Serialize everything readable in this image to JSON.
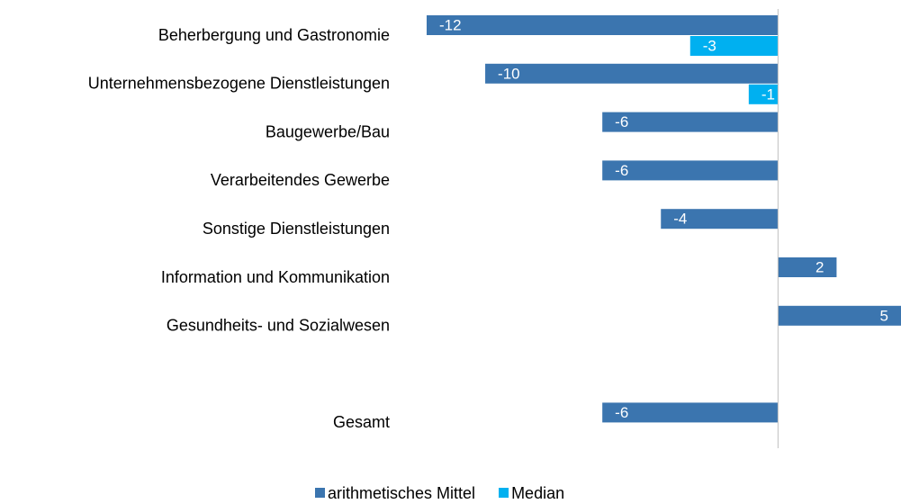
{
  "chart_data": {
    "type": "bar",
    "orientation": "horizontal",
    "categories": [
      "Beherbergung und Gastronomie",
      "Unternehmensbezogene Dienstleistungen",
      "Baugewerbe/Bau",
      "Verarbeitendes Gewerbe",
      "Sonstige Dienstleistungen",
      "Information und Kommunikation",
      "Gesundheits- und Sozialwesen",
      null,
      "Gesamt"
    ],
    "series": [
      {
        "name": "arithmetisches Mittel",
        "color": "#3b75af",
        "values": [
          -12,
          -10,
          -6,
          -6,
          -4,
          2,
          5,
          null,
          -6
        ]
      },
      {
        "name": "Median",
        "color": "#00b0f0",
        "values": [
          -3,
          -1,
          null,
          null,
          null,
          null,
          null,
          null,
          null
        ]
      }
    ],
    "xlim": [
      -12,
      4.2
    ],
    "legend": "bottom"
  }
}
